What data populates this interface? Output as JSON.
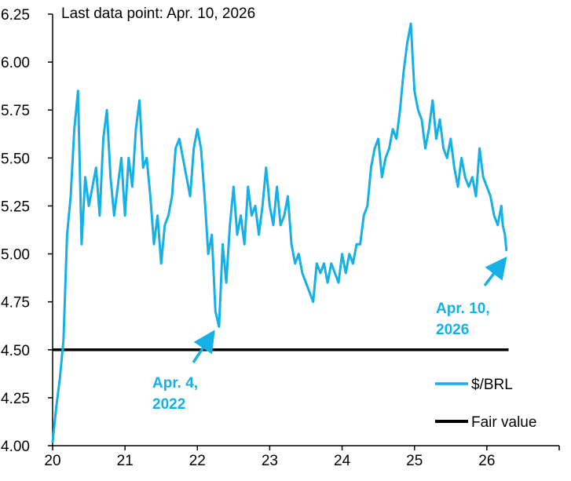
{
  "chart_data": {
    "type": "line",
    "note": "Last data point: Apr. 10, 2026",
    "x_tick_labels": [
      "20",
      "21",
      "22",
      "23",
      "24",
      "25",
      "26"
    ],
    "y_tick_labels": [
      "4.00",
      "4.25",
      "4.50",
      "4.75",
      "5.00",
      "5.25",
      "5.50",
      "5.75",
      "6.00",
      "6.25"
    ],
    "xlim": [
      20,
      27
    ],
    "ylim": [
      4.0,
      6.25
    ],
    "grid": false,
    "legend_position": "bottom-right",
    "colors": {
      "series": "#14b0e6",
      "fair_value": "#000000",
      "annotation": "#14b0e6"
    },
    "series": [
      {
        "name": "$/BRL",
        "x": [
          20.0,
          20.05,
          20.1,
          20.15,
          20.2,
          20.25,
          20.3,
          20.35,
          20.4,
          20.45,
          20.5,
          20.55,
          20.6,
          20.65,
          20.7,
          20.75,
          20.8,
          20.85,
          20.9,
          20.95,
          21.0,
          21.05,
          21.1,
          21.15,
          21.2,
          21.25,
          21.3,
          21.35,
          21.4,
          21.45,
          21.5,
          21.55,
          21.6,
          21.65,
          21.7,
          21.75,
          21.8,
          21.85,
          21.9,
          21.95,
          22.0,
          22.05,
          22.1,
          22.15,
          22.2,
          22.25,
          22.3,
          22.35,
          22.4,
          22.45,
          22.5,
          22.55,
          22.6,
          22.65,
          22.7,
          22.75,
          22.8,
          22.85,
          22.9,
          22.95,
          23.0,
          23.05,
          23.1,
          23.15,
          23.2,
          23.25,
          23.3,
          23.35,
          23.4,
          23.45,
          23.5,
          23.55,
          23.6,
          23.65,
          23.7,
          23.75,
          23.8,
          23.85,
          23.9,
          23.95,
          24.0,
          24.05,
          24.1,
          24.15,
          24.2,
          24.25,
          24.3,
          24.35,
          24.4,
          24.45,
          24.5,
          24.55,
          24.6,
          24.65,
          24.7,
          24.75,
          24.8,
          24.85,
          24.9,
          24.95,
          25.0,
          25.05,
          25.1,
          25.15,
          25.2,
          25.25,
          25.3,
          25.35,
          25.4,
          25.45,
          25.5,
          25.55,
          25.6,
          25.65,
          25.7,
          25.75,
          25.8,
          25.85,
          25.9,
          25.95,
          26.0,
          26.05,
          26.1,
          26.15,
          26.2,
          26.22,
          26.25,
          26.27
        ],
        "values": [
          4.02,
          4.2,
          4.35,
          4.55,
          5.1,
          5.3,
          5.65,
          5.85,
          5.05,
          5.4,
          5.25,
          5.35,
          5.45,
          5.2,
          5.6,
          5.75,
          5.4,
          5.2,
          5.35,
          5.5,
          5.2,
          5.5,
          5.35,
          5.65,
          5.8,
          5.45,
          5.5,
          5.3,
          5.05,
          5.2,
          4.95,
          5.15,
          5.2,
          5.3,
          5.55,
          5.6,
          5.5,
          5.4,
          5.3,
          5.55,
          5.65,
          5.55,
          5.3,
          5.0,
          5.1,
          4.7,
          4.62,
          5.05,
          4.85,
          5.15,
          5.35,
          5.1,
          5.2,
          5.05,
          5.35,
          5.2,
          5.25,
          5.1,
          5.25,
          5.45,
          5.25,
          5.15,
          5.35,
          5.15,
          5.2,
          5.3,
          5.05,
          4.95,
          5.0,
          4.9,
          4.85,
          4.8,
          4.75,
          4.95,
          4.9,
          4.95,
          4.85,
          4.95,
          4.9,
          4.85,
          5.0,
          4.9,
          5.0,
          4.95,
          5.05,
          5.05,
          5.2,
          5.25,
          5.45,
          5.55,
          5.6,
          5.4,
          5.5,
          5.55,
          5.65,
          5.6,
          5.75,
          5.95,
          6.1,
          6.2,
          5.85,
          5.75,
          5.7,
          5.55,
          5.65,
          5.8,
          5.6,
          5.7,
          5.55,
          5.5,
          5.6,
          5.45,
          5.35,
          5.5,
          5.4,
          5.35,
          5.4,
          5.3,
          5.55,
          5.4,
          5.35,
          5.3,
          5.2,
          5.15,
          5.25,
          5.15,
          5.1,
          5.02
        ]
      },
      {
        "name": "Fair value",
        "x": [
          20,
          26.3
        ],
        "values": [
          4.5,
          4.5
        ]
      }
    ],
    "annotations": [
      {
        "text_lines": [
          "Apr. 4,",
          "2022"
        ],
        "points_to": {
          "x": 22.21,
          "y": 4.6
        }
      },
      {
        "text_lines": [
          "Apr. 10,",
          "2026"
        ],
        "points_to": {
          "x": 26.22,
          "y": 4.96
        }
      }
    ]
  }
}
